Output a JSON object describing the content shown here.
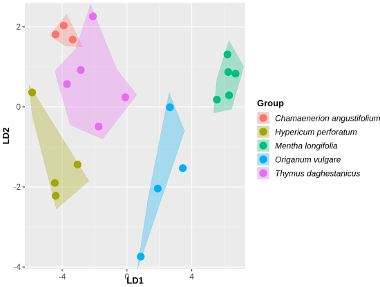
{
  "chart_data": {
    "type": "scatter",
    "title": "",
    "xlabel": "LD1",
    "ylabel": "LD2",
    "xlim": [
      -6.3,
      7.3
    ],
    "ylim": [
      -4.05,
      2.6
    ],
    "x_ticks": [
      -4,
      0,
      4
    ],
    "y_ticks": [
      2,
      0,
      -2,
      -4
    ],
    "x_tick_labels": [
      "-4",
      "0",
      "4"
    ],
    "y_tick_labels": [
      "2",
      "0",
      "-2",
      "-4"
    ],
    "grid": true,
    "legend": {
      "title": "Group",
      "placement": "right"
    },
    "hull_opacity": 0.3,
    "series": [
      {
        "name": "Chamaenerion angustifolium",
        "color": "#F8766D",
        "points": [
          [
            -3.9,
            2.03
          ],
          [
            -4.4,
            1.81
          ],
          [
            -3.35,
            1.68
          ]
        ],
        "hull": [
          [
            -4.75,
            1.78
          ],
          [
            -3.72,
            2.32
          ],
          [
            -2.75,
            1.5
          ],
          [
            -3.8,
            1.52
          ]
        ]
      },
      {
        "name": "Hypericum perforatum",
        "color": "#A3A500",
        "points": [
          [
            -5.85,
            0.36
          ],
          [
            -3.05,
            -1.44
          ],
          [
            -4.45,
            -1.9
          ],
          [
            -4.4,
            -2.22
          ]
        ],
        "hull": [
          [
            -6.05,
            0.55
          ],
          [
            -2.35,
            -1.85
          ],
          [
            -4.35,
            -2.55
          ],
          [
            -5.85,
            -0.2
          ]
        ]
      },
      {
        "name": "Mentha longifolia",
        "color": "#00BF7D",
        "points": [
          [
            6.2,
            1.31
          ],
          [
            6.25,
            0.87
          ],
          [
            6.7,
            0.83
          ],
          [
            6.3,
            0.29
          ],
          [
            5.55,
            0.18
          ]
        ],
        "hull": [
          [
            6.3,
            1.65
          ],
          [
            7.2,
            1.0
          ],
          [
            6.45,
            -0.05
          ],
          [
            5.35,
            -0.15
          ],
          [
            5.55,
            0.7
          ]
        ]
      },
      {
        "name": "Origanum vulgare",
        "color": "#00B0F6",
        "points": [
          [
            2.65,
            -0.01
          ],
          [
            3.45,
            -1.53
          ],
          [
            1.9,
            -2.04
          ],
          [
            0.85,
            -3.74
          ]
        ],
        "hull": [
          [
            2.6,
            0.35
          ],
          [
            3.55,
            -0.6
          ],
          [
            0.65,
            -4.05
          ],
          [
            1.3,
            -2.3
          ]
        ]
      },
      {
        "name": "Thymus daghestanicus",
        "color": "#E76BF3",
        "points": [
          [
            -2.1,
            2.26
          ],
          [
            -2.85,
            0.92
          ],
          [
            -3.7,
            0.57
          ],
          [
            -0.1,
            0.24
          ],
          [
            -1.75,
            -0.49
          ]
        ],
        "hull": [
          [
            -2.25,
            2.55
          ],
          [
            -0.65,
            0.95
          ],
          [
            0.6,
            0.3
          ],
          [
            -1.5,
            -0.8
          ],
          [
            -3.5,
            -0.45
          ],
          [
            -4.45,
            0.9
          ],
          [
            -3.15,
            1.45
          ]
        ]
      }
    ]
  }
}
